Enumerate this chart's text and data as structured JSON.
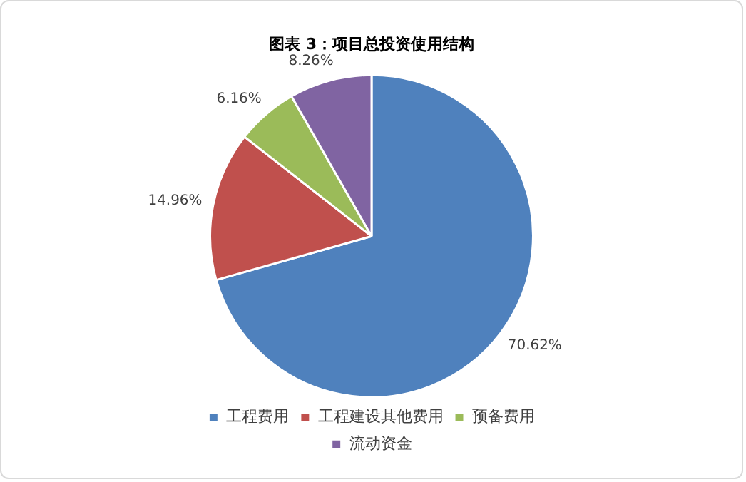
{
  "chart_data": {
    "type": "pie",
    "title": "图表 3：项目总投资使用结构",
    "categories": [
      "工程费用",
      "工程建设其他费用",
      "预备费用",
      "流动资金"
    ],
    "values": [
      70.62,
      14.96,
      6.16,
      8.26
    ],
    "value_labels": [
      "70.62%",
      "14.96%",
      "6.16%",
      "8.26%"
    ],
    "colors": [
      "#4f81bd",
      "#c0504d",
      "#9bbb59",
      "#8064a2"
    ],
    "legend": "bottom"
  }
}
